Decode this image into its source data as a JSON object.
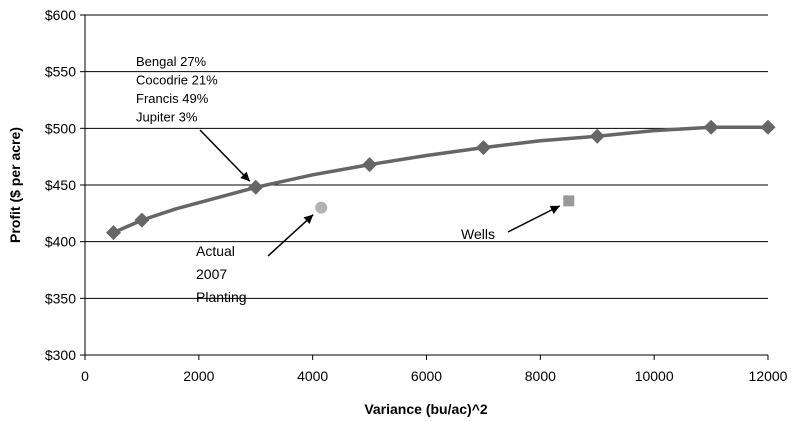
{
  "chart_data": {
    "type": "line",
    "title": "",
    "xlabel": "Variance (bu/ac)^2",
    "ylabel": "Profit ($ per acre)",
    "xlim": [
      0,
      12000
    ],
    "ylim": [
      300,
      600
    ],
    "x_ticks": [
      0,
      2000,
      4000,
      6000,
      8000,
      10000,
      12000
    ],
    "y_ticks": [
      300,
      350,
      400,
      450,
      500,
      550,
      600
    ],
    "y_tick_labels": [
      "$300",
      "$350",
      "$400",
      "$450",
      "$500",
      "$550",
      "$600"
    ],
    "grid": "horizontal",
    "series": [
      {
        "values": [
          {
            "x": 500,
            "y": 408
          },
          {
            "x": 1000,
            "y": 419
          },
          {
            "x": 1600,
            "y": 429
          },
          {
            "x": 3000,
            "y": 448
          },
          {
            "x": 4000,
            "y": 459
          },
          {
            "x": 5000,
            "y": 468
          },
          {
            "x": 6000,
            "y": 476
          },
          {
            "x": 7000,
            "y": 483
          },
          {
            "x": 8000,
            "y": 489
          },
          {
            "x": 9000,
            "y": 493
          },
          {
            "x": 10000,
            "y": 498
          },
          {
            "x": 11000,
            "y": 501
          },
          {
            "x": 12000,
            "y": 501
          }
        ],
        "marked_x": [
          500,
          1000,
          3000,
          5000,
          7000,
          9000,
          11000,
          12000
        ],
        "color": "#666666",
        "marker": "diamond"
      }
    ],
    "points": [
      {
        "label_lines": [
          "Actual",
          "2007",
          "Planting"
        ],
        "x": 4150,
        "y": 430,
        "marker": "circle",
        "color": "#b3b3b3"
      },
      {
        "label_lines": [
          "Wells"
        ],
        "x": 8500,
        "y": 436,
        "marker": "square",
        "color": "#999999"
      }
    ],
    "annotations": [
      {
        "lines": [
          "Bengal 27%",
          "Cocodrie 21%",
          "Francis 49%",
          "Jupiter 3%"
        ],
        "points_to": {
          "x": 3000,
          "y": 448
        }
      }
    ]
  }
}
